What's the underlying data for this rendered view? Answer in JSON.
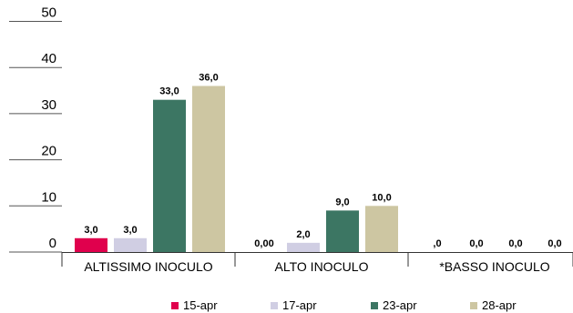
{
  "chart_data": {
    "type": "bar",
    "categories": [
      "ALTISSIMO INOCULO",
      "ALTO INOCULO",
      "*BASSO INOCULO"
    ],
    "series": [
      {
        "name": "15-apr",
        "color": "#e0004d",
        "values": [
          3,
          0,
          0
        ],
        "labels": [
          "3,0",
          "0,00",
          ",0"
        ]
      },
      {
        "name": "17-apr",
        "color": "#d0cee3",
        "values": [
          3,
          2,
          0
        ],
        "labels": [
          "3,0",
          "2,0",
          "0,0"
        ]
      },
      {
        "name": "23-apr",
        "color": "#3c7663",
        "values": [
          33,
          9,
          0
        ],
        "labels": [
          "33,0",
          "9,0",
          "0,0"
        ]
      },
      {
        "name": "28-apr",
        "color": "#cdc6a2",
        "values": [
          36,
          10,
          0
        ],
        "labels": [
          "36,0",
          "10,0",
          "0,0"
        ]
      }
    ],
    "yticks": [
      0,
      10,
      20,
      30,
      40,
      50
    ],
    "ylim": [
      0,
      50
    ],
    "legend_position": "bottom",
    "grid": false
  }
}
